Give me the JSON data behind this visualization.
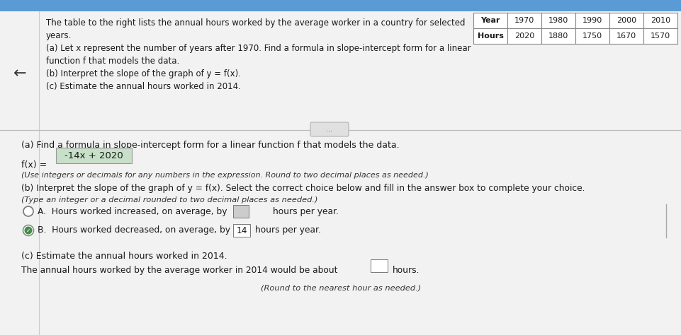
{
  "bg_top": "#f0f0f0",
  "bg_bottom": "#f0f0f0",
  "blue_stripe": "#5b9bd5",
  "table_years": [
    "Year",
    "1970",
    "1980",
    "1990",
    "2000",
    "2010"
  ],
  "table_hours": [
    "Hours",
    "2020",
    "1880",
    "1750",
    "1670",
    "1570"
  ],
  "divider_dots": "...",
  "part_a_label": "(a) Find a formula in slope-intercept form for a linear function f that models the data.",
  "fx_prefix": "f(x) = ",
  "fx_answer": "-14x + 2020",
  "fx_note": "(Use integers or decimals for any numbers in the expression. Round to two decimal places as needed.)",
  "part_b_label": "(b) Interpret the slope of the graph of y = f(x). Select the correct choice below and fill in the answer box to complete your choice.",
  "part_b_note": "(Type an integer or a decimal rounded to two decimal places as needed.)",
  "part_c_label": "(c) Estimate the annual hours worked in 2014.",
  "part_c_text": "The annual hours worked by the average worker in 2014 would be about",
  "part_c_note": "(Round to the nearest hour as needed.)",
  "arrow_symbol": "←",
  "highlight_color": "#c8dfc8",
  "highlight_border": "#999999",
  "table_border_color": "#888888",
  "text_color": "#1a1a1a",
  "divider_color": "#bbbbbb"
}
